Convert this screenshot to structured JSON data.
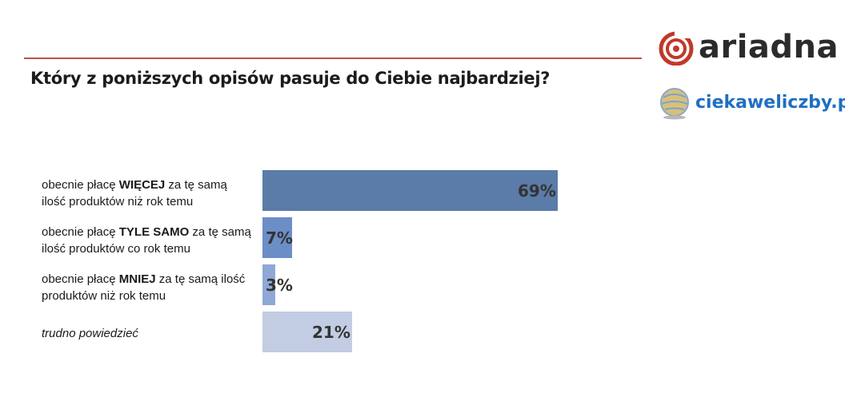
{
  "header": {
    "title": "Który z poniższych opisów pasuje do Ciebie najbardziej?"
  },
  "logos": {
    "ariadna": "ariadna",
    "ciekawe": "ciekaweliczby.pl"
  },
  "colors": {
    "rule": "#c0504d",
    "bars": [
      "#5b7ba8",
      "#6b8ec7",
      "#8fa8d6",
      "#c2cde3"
    ]
  },
  "chart_data": {
    "type": "bar",
    "orientation": "horizontal",
    "title": "Który z poniższych opisów pasuje do Ciebie najbardziej?",
    "categories": [
      "obecnie płacę WIĘCEJ za tę samą ilość produktów niż rok temu",
      "obecnie płacę TYLE SAMO za tę samą ilość produktów co rok temu",
      "obecnie płacę MNIEJ za tę samą ilość produktów niż rok temu",
      "trudno powiedzieć"
    ],
    "values": [
      69,
      7,
      3,
      21
    ],
    "data_labels": [
      "69%",
      "7%",
      "3%",
      "21%"
    ],
    "xlim": [
      0,
      100
    ],
    "grid": false,
    "legend": "none"
  },
  "rows": [
    {
      "pre": "obecnie płacę ",
      "bold": "WIĘCEJ",
      "post": " za tę samą ilość produktów niż rok temu",
      "pct": "69%"
    },
    {
      "pre": "obecnie płacę ",
      "bold": "TYLE SAMO",
      "post": " za tę samą ilość produktów co rok temu",
      "pct": "7%"
    },
    {
      "pre": "obecnie płacę ",
      "bold": "MNIEJ",
      "post": " za tę samą ilość produktów niż rok temu",
      "pct": "3%"
    },
    {
      "pre": "trudno powiedzieć",
      "bold": "",
      "post": "",
      "pct": "21%"
    }
  ]
}
